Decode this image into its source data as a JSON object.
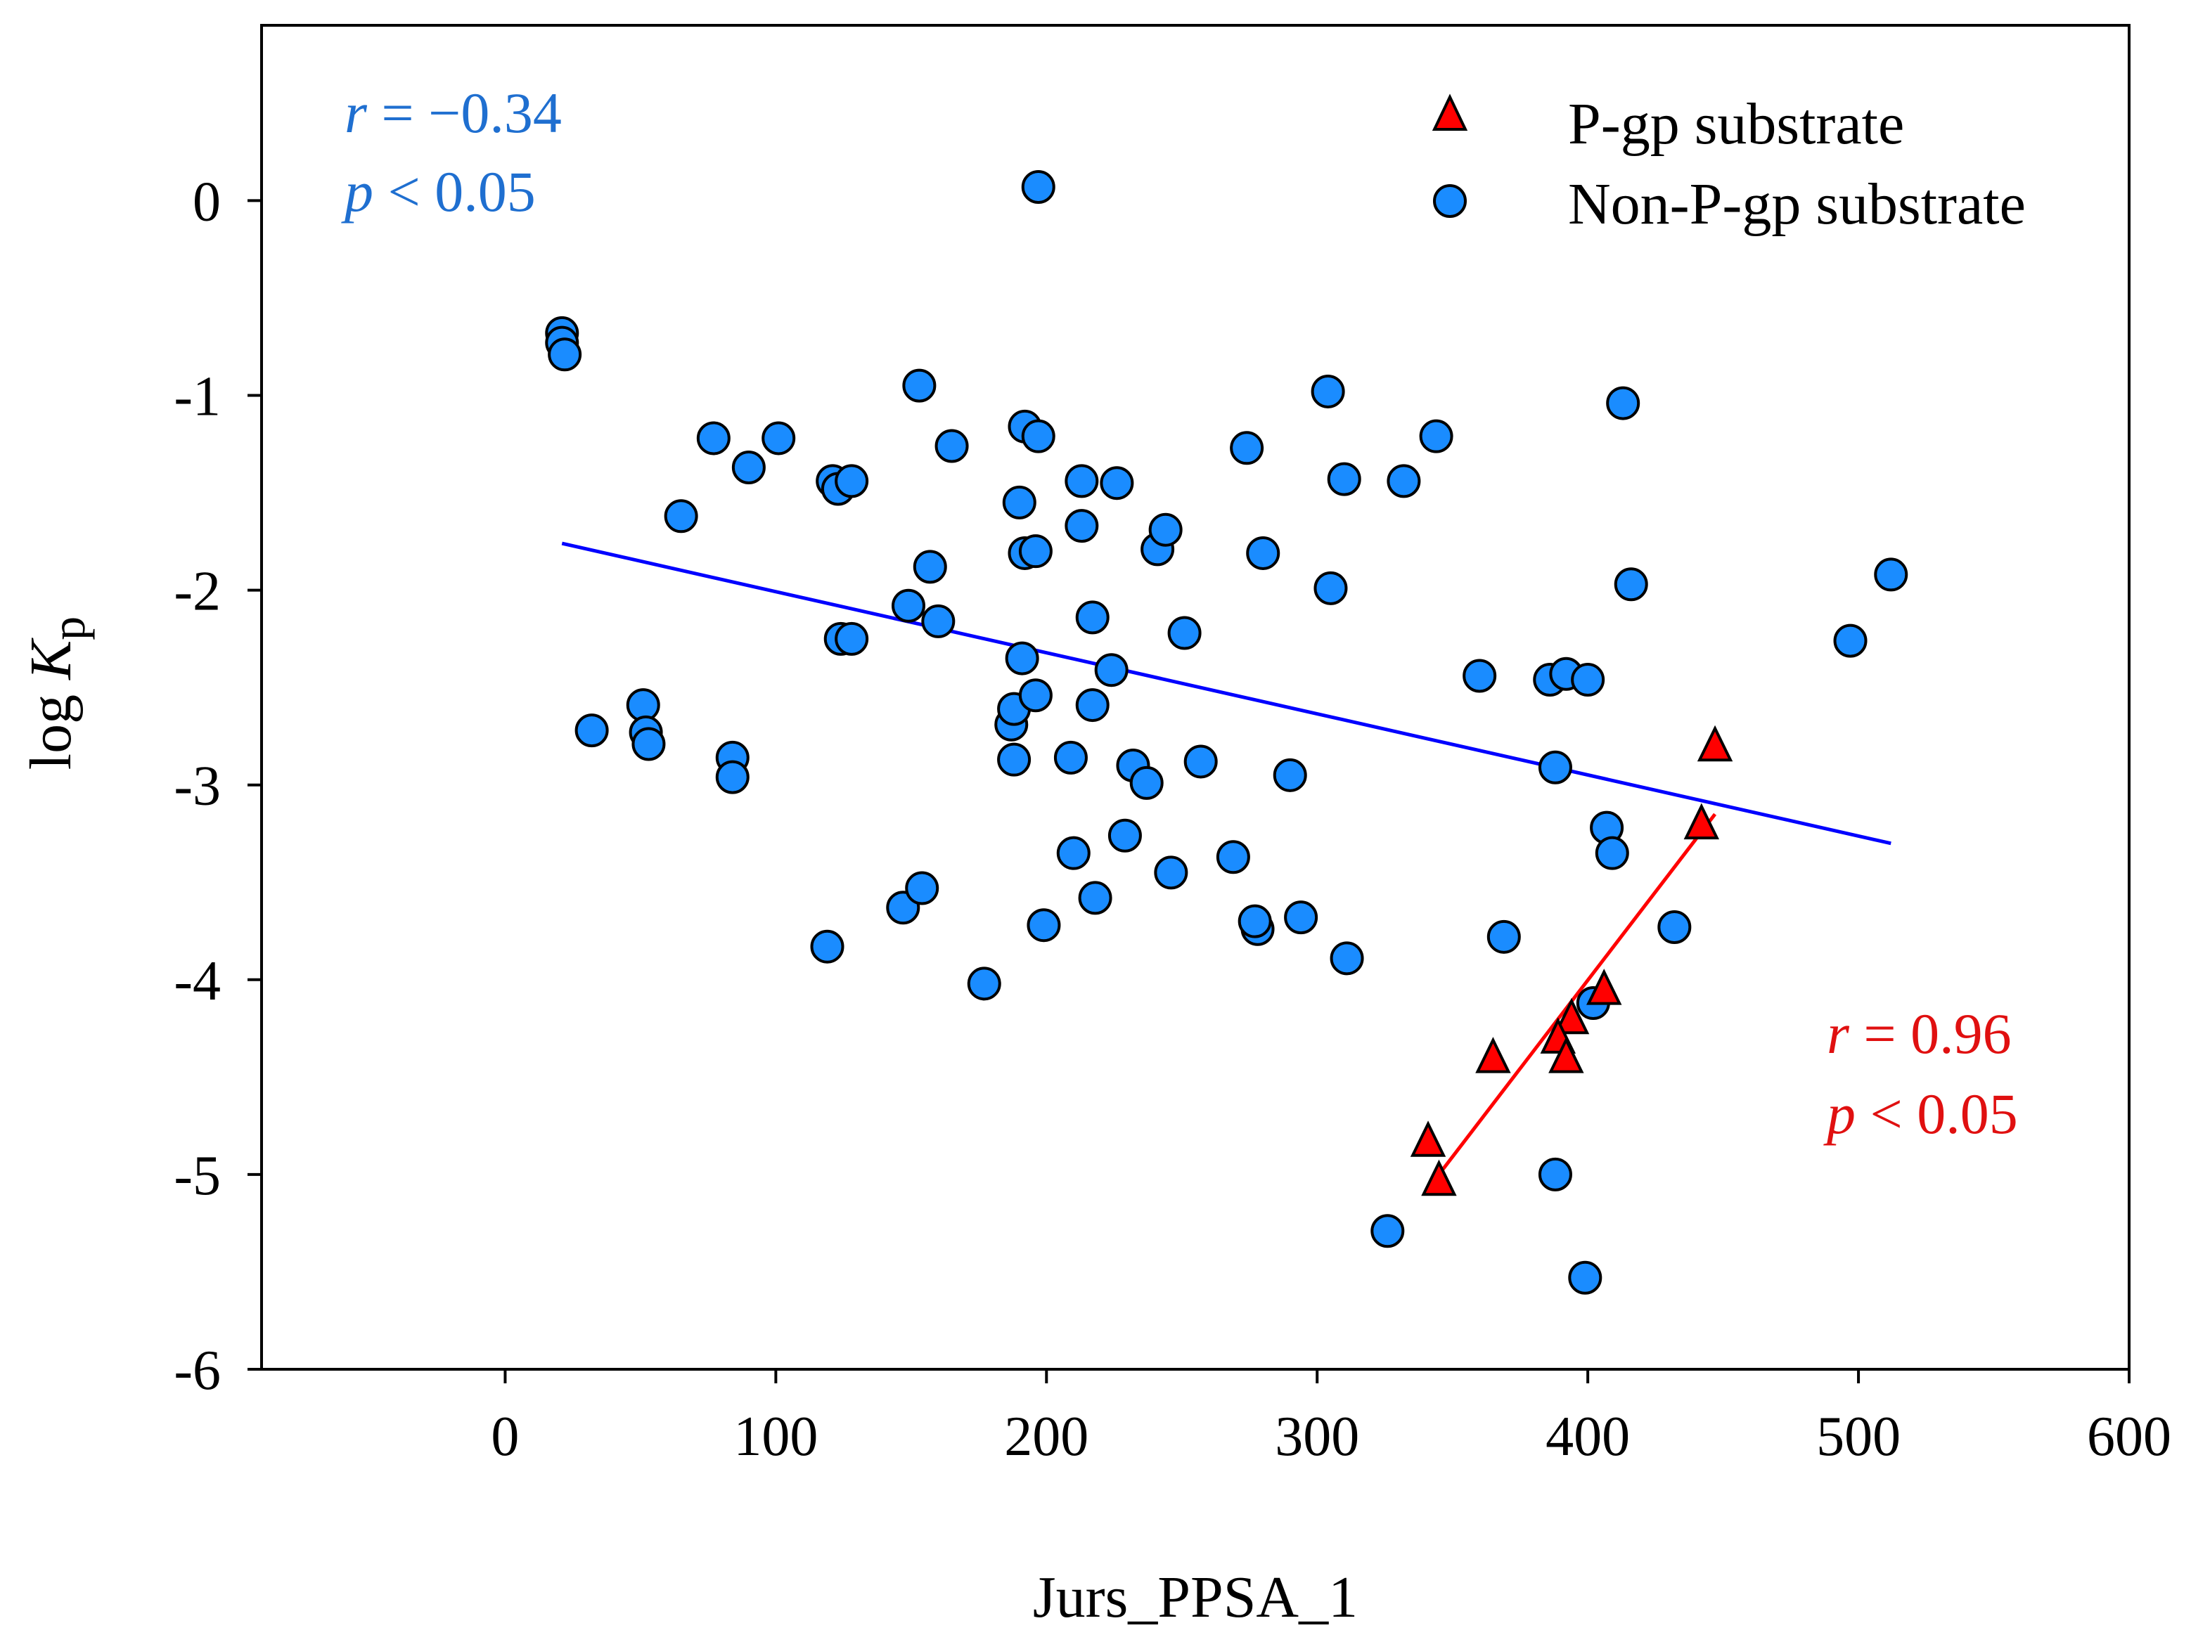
{
  "chart_data": {
    "type": "scatter",
    "xlabel": "Jurs_PPSA_1",
    "ylabel_main": "log ",
    "ylabel_italic": "K",
    "ylabel_sub": "p",
    "xlim": [
      -90,
      600
    ],
    "ylim": [
      -6,
      0.9
    ],
    "xticks": [
      0,
      100,
      200,
      300,
      400,
      500,
      600
    ],
    "yticks": [
      0,
      -1,
      -2,
      -3,
      -4,
      -5,
      -6
    ],
    "xtick_labels": [
      "0",
      "100",
      "200",
      "300",
      "400",
      "500",
      "600"
    ],
    "ytick_labels": [
      "0",
      "-1",
      "-2",
      "-3",
      "-4",
      "-5",
      "-6"
    ],
    "legend": {
      "position": "top-right",
      "entries": [
        "P-gp substrate",
        "Non-P-gp substrate"
      ]
    },
    "annotations": [
      {
        "r_label": "r",
        "r_text": " = −0.34",
        "p_label": "p",
        "p_text": " < 0.05",
        "color": "#1f6fd0"
      },
      {
        "r_label": "r",
        "r_text": "  = 0.96",
        "p_label": "p",
        "p_text": " < 0.05",
        "color": "#e01010"
      }
    ],
    "colors": {
      "non_pgp_fill": "#1a8cff",
      "pgp_fill": "#ff0000",
      "non_pgp_fit": "#0000ff",
      "pgp_fit": "#ff0000",
      "axis": "#000000"
    },
    "series": [
      {
        "name": "P-gp substrate",
        "marker": "triangle",
        "points": [
          [
            447,
            -2.8
          ],
          [
            442,
            -3.2
          ],
          [
            406,
            -4.05
          ],
          [
            394,
            -4.2
          ],
          [
            389,
            -4.3
          ],
          [
            392,
            -4.4
          ],
          [
            365,
            -4.4
          ],
          [
            341,
            -4.83
          ],
          [
            345,
            -5.03
          ]
        ],
        "fit": [
          [
            345,
            -5.0
          ],
          [
            447,
            -3.15
          ]
        ]
      },
      {
        "name": "Non-P-gp substrate",
        "marker": "circle",
        "points": [
          [
            197,
            0.07
          ],
          [
            21,
            -0.68
          ],
          [
            21,
            -0.73
          ],
          [
            22,
            -0.79
          ],
          [
            32,
            -2.72
          ],
          [
            51,
            -2.59
          ],
          [
            52,
            -2.73
          ],
          [
            53,
            -2.79
          ],
          [
            65,
            -1.62
          ],
          [
            77,
            -1.22
          ],
          [
            84,
            -2.86
          ],
          [
            84,
            -2.96
          ],
          [
            90,
            -1.37
          ],
          [
            101,
            -1.22
          ],
          [
            119,
            -3.83
          ],
          [
            121,
            -1.44
          ],
          [
            123,
            -1.48
          ],
          [
            124,
            -2.25
          ],
          [
            128,
            -1.44
          ],
          [
            128,
            -2.25
          ],
          [
            147,
            -3.63
          ],
          [
            149,
            -2.08
          ],
          [
            153,
            -0.95
          ],
          [
            154,
            -3.53
          ],
          [
            157,
            -1.88
          ],
          [
            160,
            -2.16
          ],
          [
            165,
            -1.26
          ],
          [
            177,
            -4.02
          ],
          [
            187,
            -2.69
          ],
          [
            188,
            -2.61
          ],
          [
            188,
            -2.87
          ],
          [
            190,
            -1.55
          ],
          [
            191,
            -2.35
          ],
          [
            192,
            -1.16
          ],
          [
            192,
            -1.81
          ],
          [
            196,
            -1.8
          ],
          [
            196,
            -2.54
          ],
          [
            197,
            -1.21
          ],
          [
            199,
            -3.72
          ],
          [
            209,
            -2.86
          ],
          [
            210,
            -3.35
          ],
          [
            213,
            -1.67
          ],
          [
            213,
            -1.44
          ],
          [
            217,
            -2.14
          ],
          [
            217,
            -2.59
          ],
          [
            218,
            -3.58
          ],
          [
            224,
            -2.41
          ],
          [
            226,
            -1.45
          ],
          [
            229,
            -3.26
          ],
          [
            232,
            -2.9
          ],
          [
            237,
            -2.99
          ],
          [
            241,
            -1.79
          ],
          [
            244,
            -1.69
          ],
          [
            246,
            -3.45
          ],
          [
            251,
            -2.22
          ],
          [
            257,
            -2.88
          ],
          [
            269,
            -3.37
          ],
          [
            274,
            -1.27
          ],
          [
            278,
            -3.74
          ],
          [
            277,
            -3.7
          ],
          [
            280,
            -1.81
          ],
          [
            290,
            -2.95
          ],
          [
            294,
            -3.68
          ],
          [
            304,
            -0.98
          ],
          [
            305,
            -1.99
          ],
          [
            310,
            -1.43
          ],
          [
            311,
            -3.89
          ],
          [
            326,
            -5.29
          ],
          [
            332,
            -1.44
          ],
          [
            344,
            -1.21
          ],
          [
            360,
            -2.44
          ],
          [
            369,
            -3.78
          ],
          [
            386,
            -2.46
          ],
          [
            388,
            -2.91
          ],
          [
            388,
            -5.0
          ],
          [
            392,
            -2.43
          ],
          [
            399,
            -5.53
          ],
          [
            400,
            -2.46
          ],
          [
            402,
            -4.12
          ],
          [
            407,
            -3.22
          ],
          [
            409,
            -3.35
          ],
          [
            413,
            -1.04
          ],
          [
            416,
            -1.97
          ],
          [
            432,
            -3.73
          ],
          [
            497,
            -2.26
          ],
          [
            512,
            -1.92
          ]
        ],
        "fit": [
          [
            21,
            -1.76
          ],
          [
            512,
            -3.3
          ]
        ]
      }
    ]
  }
}
